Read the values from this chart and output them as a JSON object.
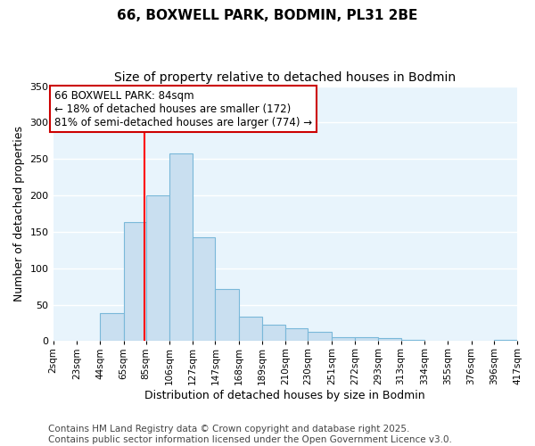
{
  "title1": "66, BOXWELL PARK, BODMIN, PL31 2BE",
  "title2": "Size of property relative to detached houses in Bodmin",
  "xlabel": "Distribution of detached houses by size in Bodmin",
  "ylabel": "Number of detached properties",
  "bin_edges": [
    2,
    23,
    44,
    65,
    85,
    106,
    127,
    147,
    168,
    189,
    210,
    230,
    251,
    272,
    293,
    313,
    334,
    355,
    376,
    396,
    417
  ],
  "bar_heights": [
    0,
    0,
    38,
    163,
    200,
    258,
    143,
    72,
    34,
    22,
    17,
    13,
    5,
    5,
    4,
    2,
    1,
    1,
    0,
    2
  ],
  "bar_color": "#c9dff0",
  "bar_edgecolor": "#7ab8d9",
  "bar_linewidth": 0.8,
  "red_line_x": 84,
  "annotation_title": "66 BOXWELL PARK: 84sqm",
  "annotation_line1": "← 18% of detached houses are smaller (172)",
  "annotation_line2": "81% of semi-detached houses are larger (774) →",
  "annotation_box_color": "#ffffff",
  "annotation_box_edgecolor": "#cc0000",
  "ylim": [
    0,
    350
  ],
  "yticks": [
    0,
    50,
    100,
    150,
    200,
    250,
    300,
    350
  ],
  "tick_labels": [
    "2sqm",
    "23sqm",
    "44sqm",
    "65sqm",
    "85sqm",
    "106sqm",
    "127sqm",
    "147sqm",
    "168sqm",
    "189sqm",
    "210sqm",
    "230sqm",
    "251sqm",
    "272sqm",
    "293sqm",
    "313sqm",
    "334sqm",
    "355sqm",
    "376sqm",
    "396sqm",
    "417sqm"
  ],
  "footer_line1": "Contains HM Land Registry data © Crown copyright and database right 2025.",
  "footer_line2": "Contains public sector information licensed under the Open Government Licence v3.0.",
  "bg_color": "#e8f4fc",
  "fig_bg_color": "#ffffff",
  "grid_color": "#ffffff",
  "title_fontsize": 11,
  "subtitle_fontsize": 10,
  "axis_label_fontsize": 9,
  "tick_fontsize": 7.5,
  "footer_fontsize": 7.5,
  "annotation_fontsize": 8.5
}
